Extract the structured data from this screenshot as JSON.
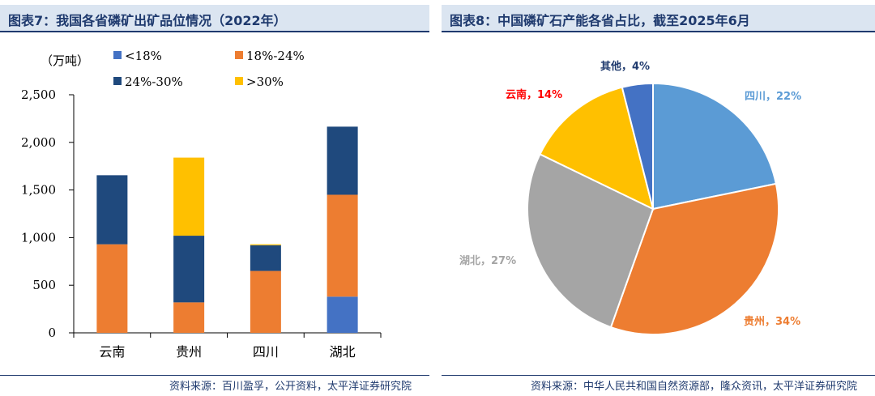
{
  "left_panel": {
    "title": "图表7：我国各省磷矿出矿品位情况（2022年）",
    "source": "资料来源：百川盈孚，公开资料，太平洋证券研究院"
  },
  "right_panel": {
    "title": "图表8：中国磷矿石产能各省占比，截至2025年6月",
    "source": "资料来源：中华人民共和国自然资源部，隆众资讯，太平洋证券研究院"
  },
  "chart_data": [
    {
      "type": "bar",
      "stacked": true,
      "unit_label": "（万吨）",
      "categories": [
        "云南",
        "贵州",
        "四川",
        "湖北"
      ],
      "ylim": [
        0,
        2500
      ],
      "yticks": [
        0,
        500,
        1000,
        1500,
        2000,
        2500
      ],
      "ytick_labels": [
        "0",
        "500",
        "1,000",
        "1,500",
        "2,000",
        "2,500"
      ],
      "legend_position": "top",
      "series": [
        {
          "name": "<18%",
          "color": "#4472c4",
          "values": [
            0,
            0,
            0,
            380
          ]
        },
        {
          "name": "18%-24%",
          "color": "#ed7d31",
          "values": [
            930,
            320,
            650,
            1070
          ]
        },
        {
          "name": "24%-30%",
          "color": "#1f497d",
          "values": [
            725,
            700,
            270,
            715
          ]
        },
        {
          "name": ">30%",
          "color": "#ffc000",
          "values": [
            0,
            820,
            10,
            0
          ]
        }
      ]
    },
    {
      "type": "pie",
      "slices": [
        {
          "label": "四川，22%",
          "value": 22,
          "color": "#5b9bd5",
          "label_color": "#5b9bd5"
        },
        {
          "label": "贵州，34%",
          "value": 34,
          "color": "#ed7d31",
          "label_color": "#ed7d31"
        },
        {
          "label": "湖北，27%",
          "value": 27,
          "color": "#a5a5a5",
          "label_color": "#a5a5a5"
        },
        {
          "label": "云南，14%",
          "value": 14,
          "color": "#ffc000",
          "label_color": "#ff0000"
        },
        {
          "label": "其他，4%",
          "value": 4,
          "color": "#4472c4",
          "label_color": "#1f3a6e"
        }
      ]
    }
  ]
}
